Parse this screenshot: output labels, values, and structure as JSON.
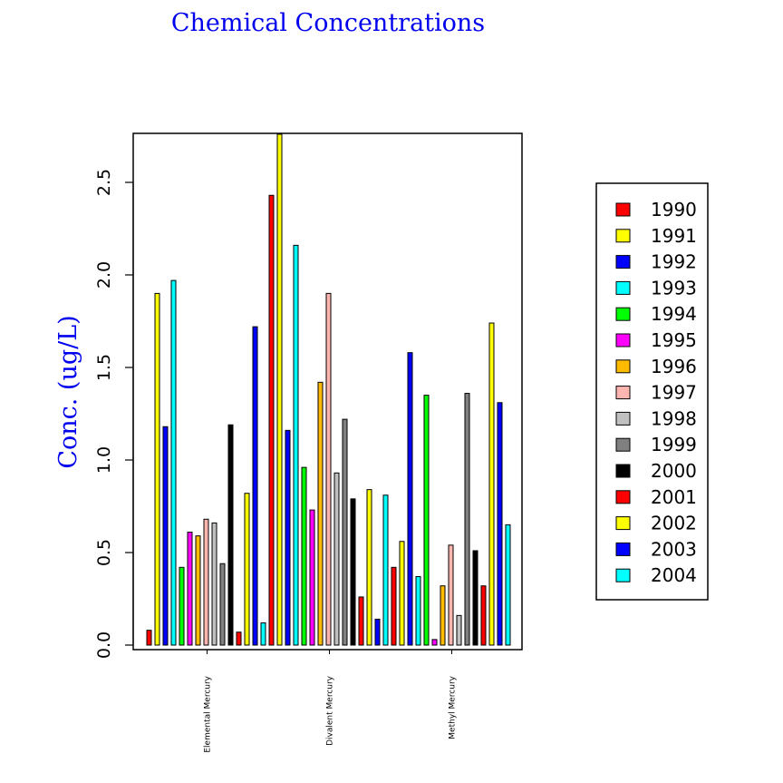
{
  "chart_data": {
    "type": "bar",
    "title": "Chemical Concentrations",
    "ylabel": "Conc. (ug/L)",
    "xlabel": "",
    "ylim": [
      0,
      2.75
    ],
    "yticks": [
      "0.0",
      "0.5",
      "1.0",
      "1.5",
      "2.0",
      "2.5"
    ],
    "categories": [
      "Elemental Mercury",
      "Divalent Mercury",
      "Methyl Mercury"
    ],
    "legend_position": "right",
    "grid": false,
    "series": [
      {
        "name": "1990",
        "color": "#ff0000",
        "values": [
          0.08,
          2.43,
          0.42
        ]
      },
      {
        "name": "1991",
        "color": "#ffff00",
        "values": [
          1.9,
          2.76,
          0.56
        ]
      },
      {
        "name": "1992",
        "color": "#0000ff",
        "values": [
          1.18,
          1.16,
          1.58
        ]
      },
      {
        "name": "1993",
        "color": "#00ffff",
        "values": [
          1.97,
          2.16,
          0.37
        ]
      },
      {
        "name": "1994",
        "color": "#00ff00",
        "values": [
          0.42,
          0.96,
          1.35
        ]
      },
      {
        "name": "1995",
        "color": "#ff00ff",
        "values": [
          0.61,
          0.73,
          0.03
        ]
      },
      {
        "name": "1996",
        "color": "#ffbb00",
        "values": [
          0.59,
          1.42,
          0.32
        ]
      },
      {
        "name": "1997",
        "color": "#ffb6b0",
        "values": [
          0.68,
          1.9,
          0.54
        ]
      },
      {
        "name": "1998",
        "color": "#c0c0c0",
        "values": [
          0.66,
          0.93,
          0.16
        ]
      },
      {
        "name": "1999",
        "color": "#808080",
        "values": [
          0.44,
          1.22,
          1.36
        ]
      },
      {
        "name": "2000",
        "color": "#000000",
        "values": [
          1.19,
          0.79,
          0.51
        ]
      },
      {
        "name": "2001",
        "color": "#ff0000",
        "values": [
          0.07,
          0.26,
          0.32
        ]
      },
      {
        "name": "2002",
        "color": "#ffff00",
        "values": [
          0.82,
          0.84,
          1.74
        ]
      },
      {
        "name": "2003",
        "color": "#0000ff",
        "values": [
          1.72,
          0.14,
          1.31
        ]
      },
      {
        "name": "2004",
        "color": "#00ffff",
        "values": [
          0.12,
          0.81,
          0.65
        ]
      }
    ]
  }
}
